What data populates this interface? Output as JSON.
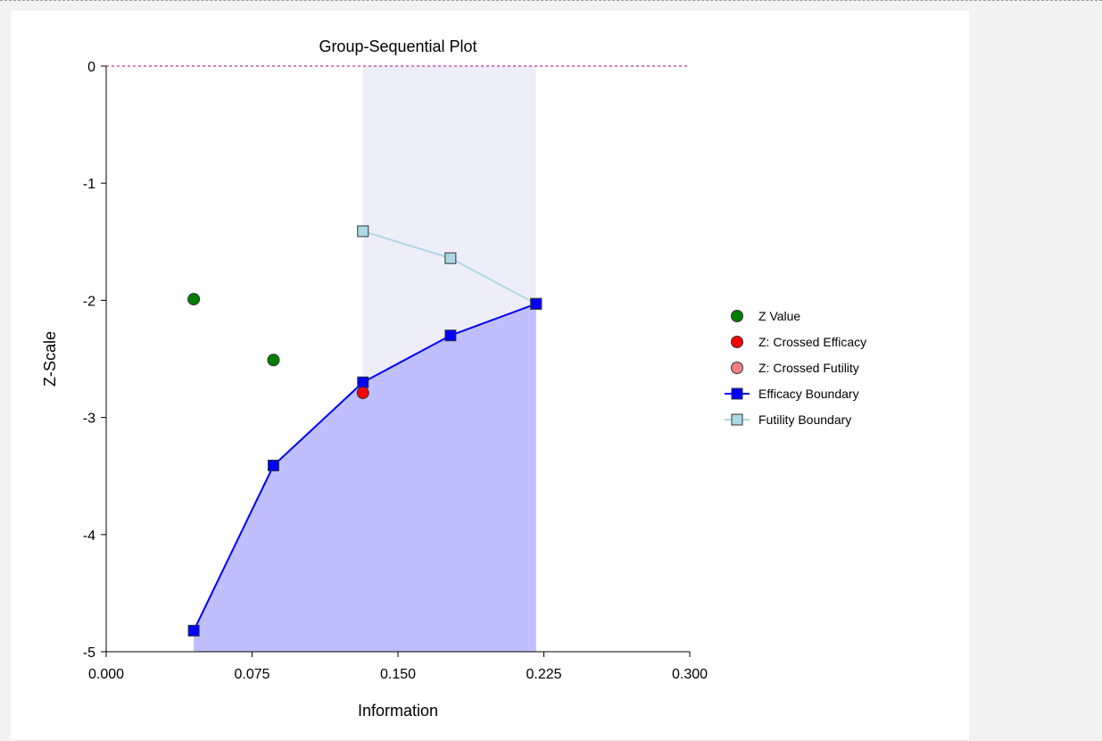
{
  "chart_data": {
    "type": "scatter",
    "title": "Group-Sequential Plot",
    "xlabel": "Information",
    "ylabel": "Z-Scale",
    "xlim": [
      0,
      0.3
    ],
    "ylim": [
      -5,
      0
    ],
    "xticks": [
      0,
      0.075,
      0.15,
      0.225,
      0.3
    ],
    "xtick_labels": [
      "0.000",
      "0.075",
      "0.150",
      "0.225",
      "0.300"
    ],
    "yticks": [
      0,
      -1,
      -2,
      -3,
      -4,
      -5
    ],
    "ytick_labels": [
      "0",
      "-1",
      "-2",
      "-3",
      "-4",
      "-5"
    ],
    "reference_line": {
      "y": 0,
      "style": "dashed",
      "color": "#990099"
    },
    "continuation_region": {
      "x_range": [
        0.132,
        0.221
      ],
      "color": "#eeeefa"
    },
    "efficacy_region": {
      "color": "#bfbfff"
    },
    "legend_position": "right",
    "series": [
      {
        "name": "Z Value",
        "kind": "points",
        "color": "#008000",
        "x": [
          0.045,
          0.086
        ],
        "y": [
          -1.99,
          -2.51
        ]
      },
      {
        "name": "Z: Crossed Efficacy",
        "kind": "points",
        "color": "#ff0000",
        "x": [
          0.132
        ],
        "y": [
          -2.79
        ]
      },
      {
        "name": "Z: Crossed Futility",
        "kind": "points",
        "color": "#f08080",
        "x": [],
        "y": []
      },
      {
        "name": "Efficacy Boundary",
        "kind": "line-square",
        "color": "#0000ff",
        "x": [
          0.045,
          0.086,
          0.132,
          0.177,
          0.221
        ],
        "y": [
          -4.82,
          -3.41,
          -2.7,
          -2.3,
          -2.03
        ]
      },
      {
        "name": "Futility Boundary",
        "kind": "line-square",
        "color": "#add8e6",
        "x": [
          0.132,
          0.177,
          0.221
        ],
        "y": [
          -1.41,
          -1.64,
          -2.03
        ]
      }
    ]
  }
}
